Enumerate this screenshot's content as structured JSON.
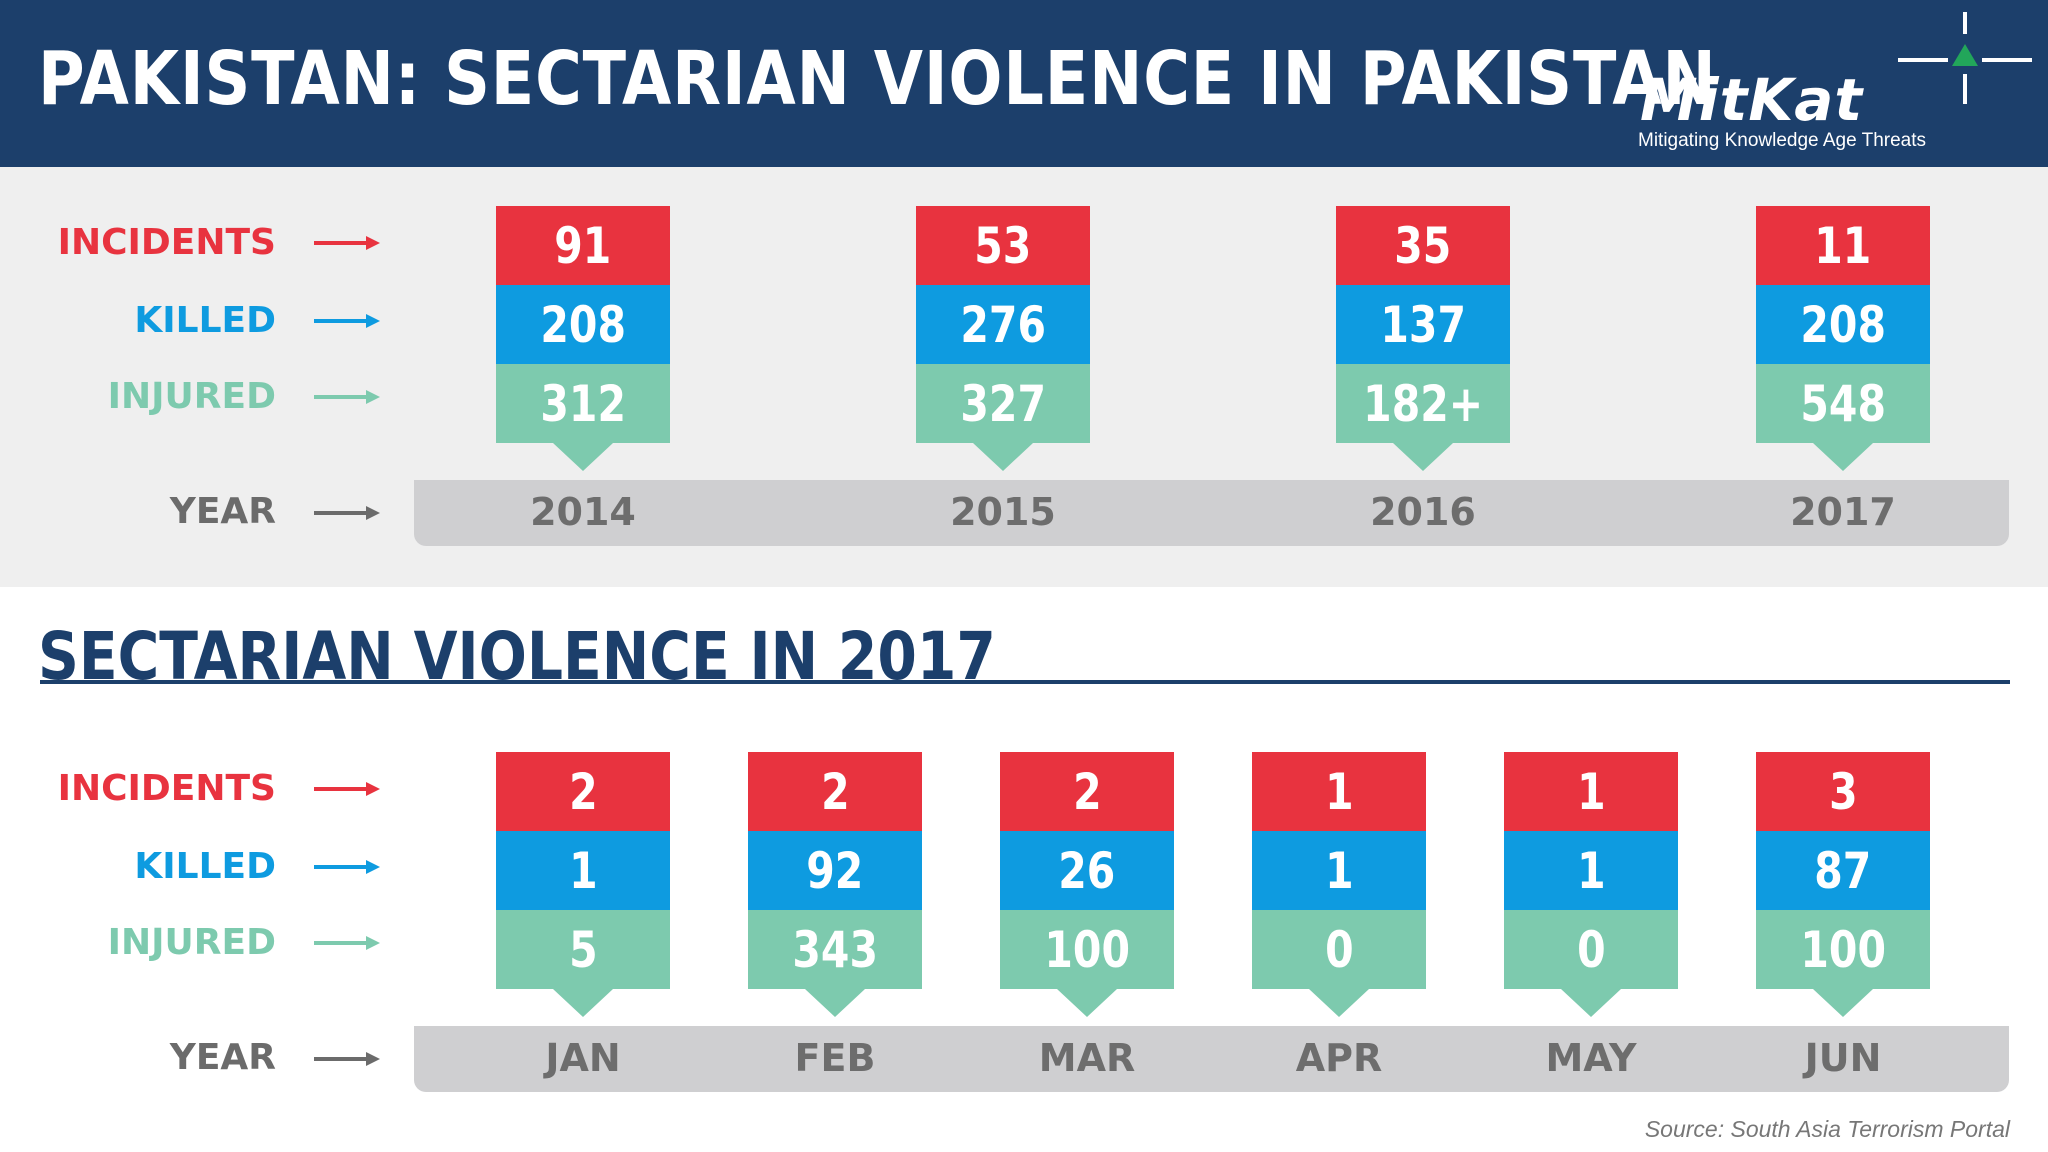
{
  "header": {
    "title": "PAKISTAN: SECTARIAN VIOLENCE IN PAKISTAN",
    "logo_text": "MitKat",
    "logo_tagline": "Mitigating Knowledge Age Threats"
  },
  "labels": {
    "incidents": "INCIDENTS",
    "killed": "KILLED",
    "injured": "INJURED",
    "year": "YEAR"
  },
  "colors": {
    "incidents": "#e8333f",
    "killed": "#0e9be0",
    "injured": "#7dcaae",
    "header": "#1c3f6b"
  },
  "section2_title": "SECTARIAN VIOLENCE IN 2017",
  "source": "Source: South Asia Terrorism Portal",
  "chart_data": [
    {
      "type": "table",
      "title": "PAKISTAN: SECTARIAN VIOLENCE IN PAKISTAN",
      "categories": [
        "2014",
        "2015",
        "2016",
        "2017"
      ],
      "series": [
        {
          "name": "INCIDENTS",
          "values": [
            "91",
            "53",
            "35",
            "11"
          ]
        },
        {
          "name": "KILLED",
          "values": [
            "208",
            "276",
            "137",
            "208"
          ]
        },
        {
          "name": "INJURED",
          "values": [
            "312",
            "327",
            "182+",
            "548"
          ]
        }
      ]
    },
    {
      "type": "table",
      "title": "SECTARIAN VIOLENCE IN 2017",
      "categories": [
        "JAN",
        "FEB",
        "MAR",
        "APR",
        "MAY",
        "JUN"
      ],
      "series": [
        {
          "name": "INCIDENTS",
          "values": [
            "2",
            "2",
            "2",
            "1",
            "1",
            "3"
          ]
        },
        {
          "name": "KILLED",
          "values": [
            "1",
            "92",
            "26",
            "1",
            "1",
            "87"
          ]
        },
        {
          "name": "INJURED",
          "values": [
            "5",
            "343",
            "100",
            "0",
            "0",
            "100"
          ]
        }
      ]
    }
  ]
}
